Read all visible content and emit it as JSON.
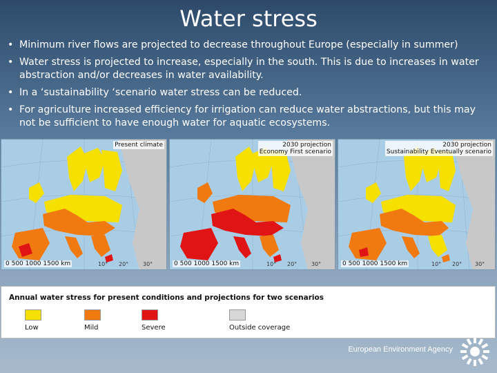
{
  "slide": {
    "title": "Water stress",
    "bullets": [
      "Minimum river flows are projected to decrease throughout Europe (especially in summer)",
      "Water stress is projected to increase, especially in the south. This is due to increases in water abstraction and/or decreases in water availability.",
      "In a ‘sustainability ‘scenario water stress can be reduced.",
      "For agriculture increased efficiency for irrigation can reduce water abstractions, but this may not be sufficient to have enough water for aquatic ecosystems."
    ]
  },
  "maps": [
    {
      "label": "Present climate",
      "scale": "0   500 1000 1500 km"
    },
    {
      "label": "2030 projection\nEconomy First scenario",
      "scale": "0   500 1000 1500 km"
    },
    {
      "label": "2030 projection\nSustainability Eventually scenario",
      "scale": "0   500 1000 1500 km"
    }
  ],
  "map_degree_labels": [
    "10°",
    "20°",
    "30°"
  ],
  "legend": {
    "title": "Annual water stress for present conditions and projections for two scenarios",
    "items": [
      {
        "label": "Low",
        "color": "#f5e000"
      },
      {
        "label": "Mild",
        "color": "#f07a10"
      },
      {
        "label": "Severe",
        "color": "#e01414"
      },
      {
        "label": "Outside coverage",
        "color": "#d8d8d8"
      }
    ]
  },
  "footer": {
    "agency": "European Environment Agency"
  },
  "colors": {
    "sea": "#aacde6",
    "outside_land": "#c8c8c8",
    "low": "#f5e000",
    "mild": "#f07a10",
    "severe": "#e01414"
  },
  "icons": {
    "logo": "eea-sun-logo-icon"
  }
}
